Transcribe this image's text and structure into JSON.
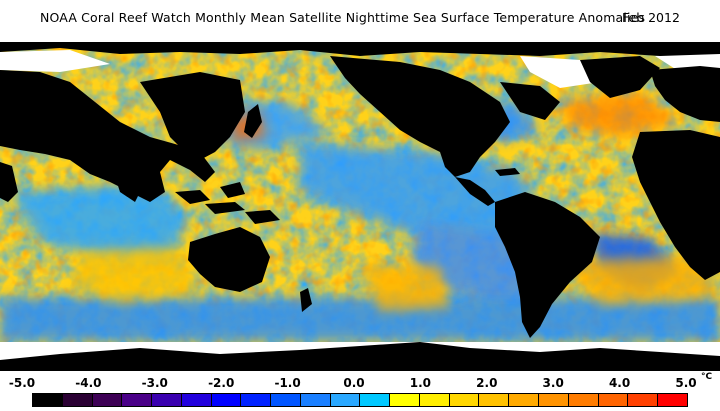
{
  "header": {
    "title": "NOAA Coral Reef Watch Monthly Mean Satellite Nighttime Sea Surface Temperature Anomalies",
    "date": "Feb 2012"
  },
  "legend": {
    "unit": "°C",
    "ticks": [
      "-5.0",
      "-4.0",
      "-3.0",
      "-2.0",
      "-1.0",
      "0.0",
      "1.0",
      "2.0",
      "3.0",
      "4.0",
      "5.0"
    ],
    "colors": [
      "#000000",
      "#2a0033",
      "#3d0055",
      "#4a0088",
      "#3a00b0",
      "#2200dd",
      "#0000ff",
      "#0022ff",
      "#0055ff",
      "#1a7fff",
      "#2aa8ff",
      "#00c8ff",
      "#ffff00",
      "#ffee00",
      "#ffd700",
      "#ffc200",
      "#ffaa00",
      "#ff9300",
      "#ff7c00",
      "#ff6400",
      "#ff4000",
      "#ff0000"
    ]
  },
  "map": {
    "land_color": "#000000",
    "ice_color": "#ffffff",
    "ocean_base_color": "#ffd21a"
  }
}
